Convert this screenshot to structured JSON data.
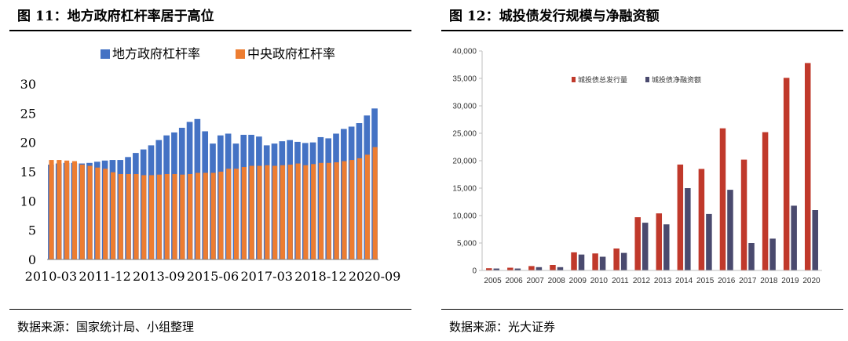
{
  "figures": [
    {
      "title": "图 11：地方政府杠杆率居于高位",
      "source": "数据来源：国家统计局、小组整理"
    },
    {
      "title": "图 12：城投债发行规模与净融资额",
      "source": "数据来源：光大证券"
    }
  ],
  "colors": {
    "left_local": "#4472C4",
    "left_central": "#ED7D31",
    "right_issuance": "#C0392B",
    "right_net": "#4A4A6E"
  },
  "chart_data": [
    {
      "type": "bar",
      "title": "",
      "xlabel": "",
      "ylabel": "",
      "ylim": [
        0,
        30
      ],
      "yticks": [
        "0",
        "5",
        "10",
        "15",
        "20",
        "25",
        "30"
      ],
      "xticks": [
        "2010-03",
        "2011-12",
        "2013-09",
        "2015-06",
        "2017-03",
        "2018-12",
        "2020-09"
      ],
      "legend_position": "top",
      "grid": false,
      "categories": [
        "2010-03",
        "2010-06",
        "2010-09",
        "2010-12",
        "2011-03",
        "2011-06",
        "2011-09",
        "2011-12",
        "2012-03",
        "2012-06",
        "2012-09",
        "2012-12",
        "2013-03",
        "2013-06",
        "2013-09",
        "2013-12",
        "2014-03",
        "2014-06",
        "2014-09",
        "2014-12",
        "2015-03",
        "2015-06",
        "2015-09",
        "2015-12",
        "2016-03",
        "2016-06",
        "2016-09",
        "2016-12",
        "2017-03",
        "2017-06",
        "2017-09",
        "2017-12",
        "2018-03",
        "2018-06",
        "2018-09",
        "2018-12",
        "2019-03",
        "2019-06",
        "2019-09",
        "2019-12",
        "2020-03",
        "2020-06",
        "2020-09"
      ],
      "series": [
        {
          "name": "地方政府杠杆率",
          "values": [
            16.2,
            16.4,
            16.5,
            16.5,
            16.4,
            16.5,
            16.7,
            16.9,
            17.0,
            17.0,
            17.5,
            18.2,
            18.8,
            19.5,
            20.4,
            21.2,
            21.7,
            22.5,
            23.5,
            24.0,
            21.9,
            19.8,
            21.2,
            21.5,
            19.8,
            21.3,
            21.3,
            21.0,
            19.5,
            19.8,
            20.2,
            20.4,
            20.1,
            19.9,
            20.0,
            20.9,
            20.7,
            21.5,
            22.3,
            22.7,
            23.3,
            24.6,
            25.8
          ]
        },
        {
          "name": "中央政府杠杆率",
          "values": [
            17.0,
            17.0,
            16.9,
            16.8,
            16.2,
            16.0,
            15.7,
            15.5,
            14.9,
            14.6,
            14.6,
            14.6,
            14.4,
            14.4,
            14.5,
            14.6,
            14.6,
            14.5,
            14.6,
            14.8,
            14.8,
            14.8,
            15.0,
            15.5,
            15.5,
            15.8,
            16.0,
            16.0,
            16.1,
            16.0,
            16.1,
            16.2,
            16.4,
            16.1,
            16.3,
            16.5,
            16.5,
            16.6,
            16.8,
            17.0,
            17.3,
            17.9,
            19.2
          ]
        }
      ]
    },
    {
      "type": "bar",
      "title": "",
      "xlabel": "",
      "ylabel": "",
      "ylim": [
        0,
        40000
      ],
      "yticks": [
        "0",
        "5,000",
        "10,000",
        "15,000",
        "20,000",
        "25,000",
        "30,000",
        "35,000",
        "40,000"
      ],
      "legend_position": "top-left",
      "grid": false,
      "categories": [
        "2005",
        "2006",
        "2007",
        "2008",
        "2009",
        "2010",
        "2011",
        "2012",
        "2013",
        "2014",
        "2015",
        "2016",
        "2017",
        "2018",
        "2019",
        "2020"
      ],
      "series": [
        {
          "name": "城投债总发行量",
          "values": [
            400,
            500,
            800,
            1000,
            3300,
            3100,
            4000,
            9700,
            10400,
            19300,
            18500,
            25900,
            20200,
            25200,
            35100,
            37800
          ]
        },
        {
          "name": "城投债净融资额",
          "values": [
            350,
            350,
            600,
            600,
            2900,
            2500,
            3200,
            8700,
            8400,
            15000,
            10300,
            14700,
            5000,
            5800,
            11800,
            11000
          ]
        }
      ]
    }
  ]
}
